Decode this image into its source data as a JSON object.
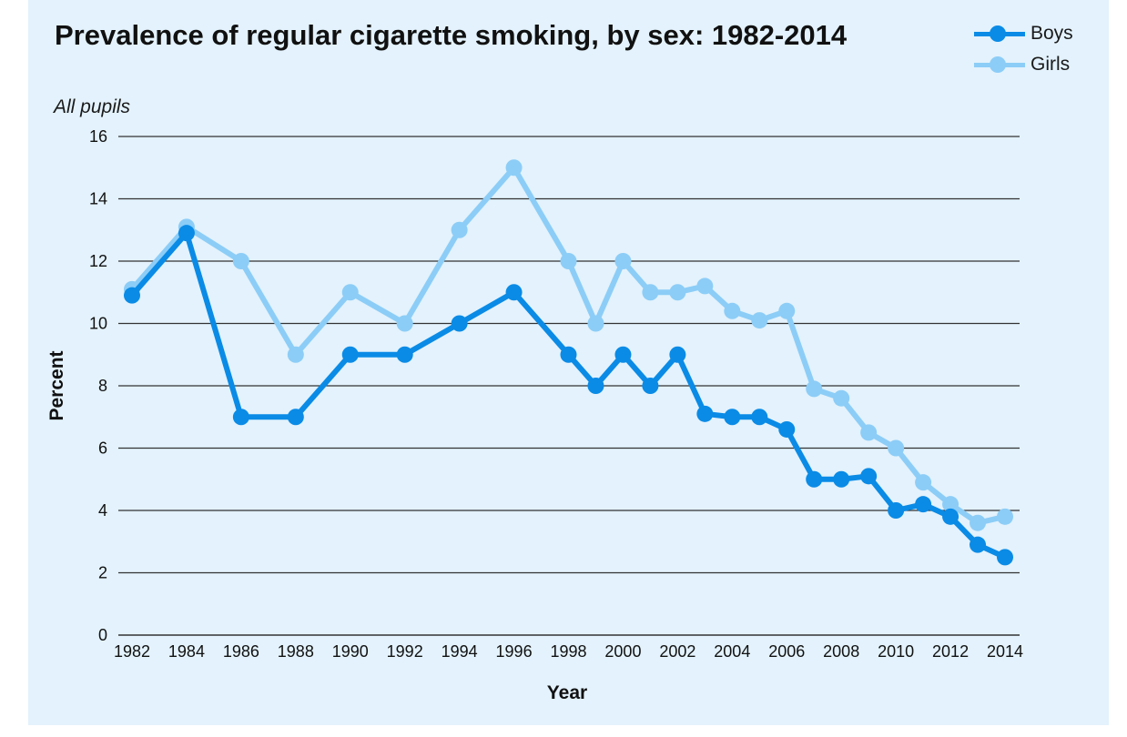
{
  "chart_data": {
    "type": "line",
    "title": "Prevalence of regular cigarette smoking, by sex: 1982-2014",
    "subtitle": "All pupils",
    "xlabel": "Year",
    "ylabel": "Percent",
    "ylim": [
      0,
      16
    ],
    "yticks": [
      "0",
      "2",
      "4",
      "6",
      "8",
      "10",
      "12",
      "14",
      "16"
    ],
    "xlim": [
      1982,
      2014
    ],
    "xticks": [
      "1982",
      "1984",
      "1986",
      "1988",
      "1990",
      "1992",
      "1994",
      "1996",
      "1998",
      "2000",
      "2002",
      "2004",
      "2006",
      "2008",
      "2010",
      "2012",
      "2014"
    ],
    "grid": true,
    "legend_position": "top-right",
    "series": [
      {
        "name": "Boys",
        "color": "#0a8be6",
        "points": [
          {
            "x": 1982,
            "y": 10.9
          },
          {
            "x": 1984,
            "y": 12.9
          },
          {
            "x": 1986,
            "y": 7.0
          },
          {
            "x": 1988,
            "y": 7.0
          },
          {
            "x": 1990,
            "y": 9.0
          },
          {
            "x": 1992,
            "y": 9.0
          },
          {
            "x": 1994,
            "y": 10.0
          },
          {
            "x": 1996,
            "y": 11.0
          },
          {
            "x": 1998,
            "y": 9.0
          },
          {
            "x": 1999,
            "y": 8.0
          },
          {
            "x": 2000,
            "y": 9.0
          },
          {
            "x": 2001,
            "y": 8.0
          },
          {
            "x": 2002,
            "y": 9.0
          },
          {
            "x": 2003,
            "y": 7.1
          },
          {
            "x": 2004,
            "y": 7.0
          },
          {
            "x": 2005,
            "y": 7.0
          },
          {
            "x": 2006,
            "y": 6.6
          },
          {
            "x": 2007,
            "y": 5.0
          },
          {
            "x": 2008,
            "y": 5.0
          },
          {
            "x": 2009,
            "y": 5.1
          },
          {
            "x": 2010,
            "y": 4.0
          },
          {
            "x": 2011,
            "y": 4.2
          },
          {
            "x": 2012,
            "y": 3.8
          },
          {
            "x": 2013,
            "y": 2.9
          },
          {
            "x": 2014,
            "y": 2.5
          }
        ]
      },
      {
        "name": "Girls",
        "color": "#8ccdf7",
        "points": [
          {
            "x": 1982,
            "y": 11.1
          },
          {
            "x": 1984,
            "y": 13.1
          },
          {
            "x": 1986,
            "y": 12.0
          },
          {
            "x": 1988,
            "y": 9.0
          },
          {
            "x": 1990,
            "y": 11.0
          },
          {
            "x": 1992,
            "y": 10.0
          },
          {
            "x": 1994,
            "y": 13.0
          },
          {
            "x": 1996,
            "y": 15.0
          },
          {
            "x": 1998,
            "y": 12.0
          },
          {
            "x": 1999,
            "y": 10.0
          },
          {
            "x": 2000,
            "y": 12.0
          },
          {
            "x": 2001,
            "y": 11.0
          },
          {
            "x": 2002,
            "y": 11.0
          },
          {
            "x": 2003,
            "y": 11.2
          },
          {
            "x": 2004,
            "y": 10.4
          },
          {
            "x": 2005,
            "y": 10.1
          },
          {
            "x": 2006,
            "y": 10.4
          },
          {
            "x": 2007,
            "y": 7.9
          },
          {
            "x": 2008,
            "y": 7.6
          },
          {
            "x": 2009,
            "y": 6.5
          },
          {
            "x": 2010,
            "y": 6.0
          },
          {
            "x": 2011,
            "y": 4.9
          },
          {
            "x": 2012,
            "y": 4.2
          },
          {
            "x": 2013,
            "y": 3.6
          },
          {
            "x": 2014,
            "y": 3.8
          }
        ]
      }
    ]
  },
  "colors": {
    "background": "#e3f2fc",
    "boys": "#0a8be6",
    "girls": "#8ccdf7",
    "gridline": "#333333"
  }
}
